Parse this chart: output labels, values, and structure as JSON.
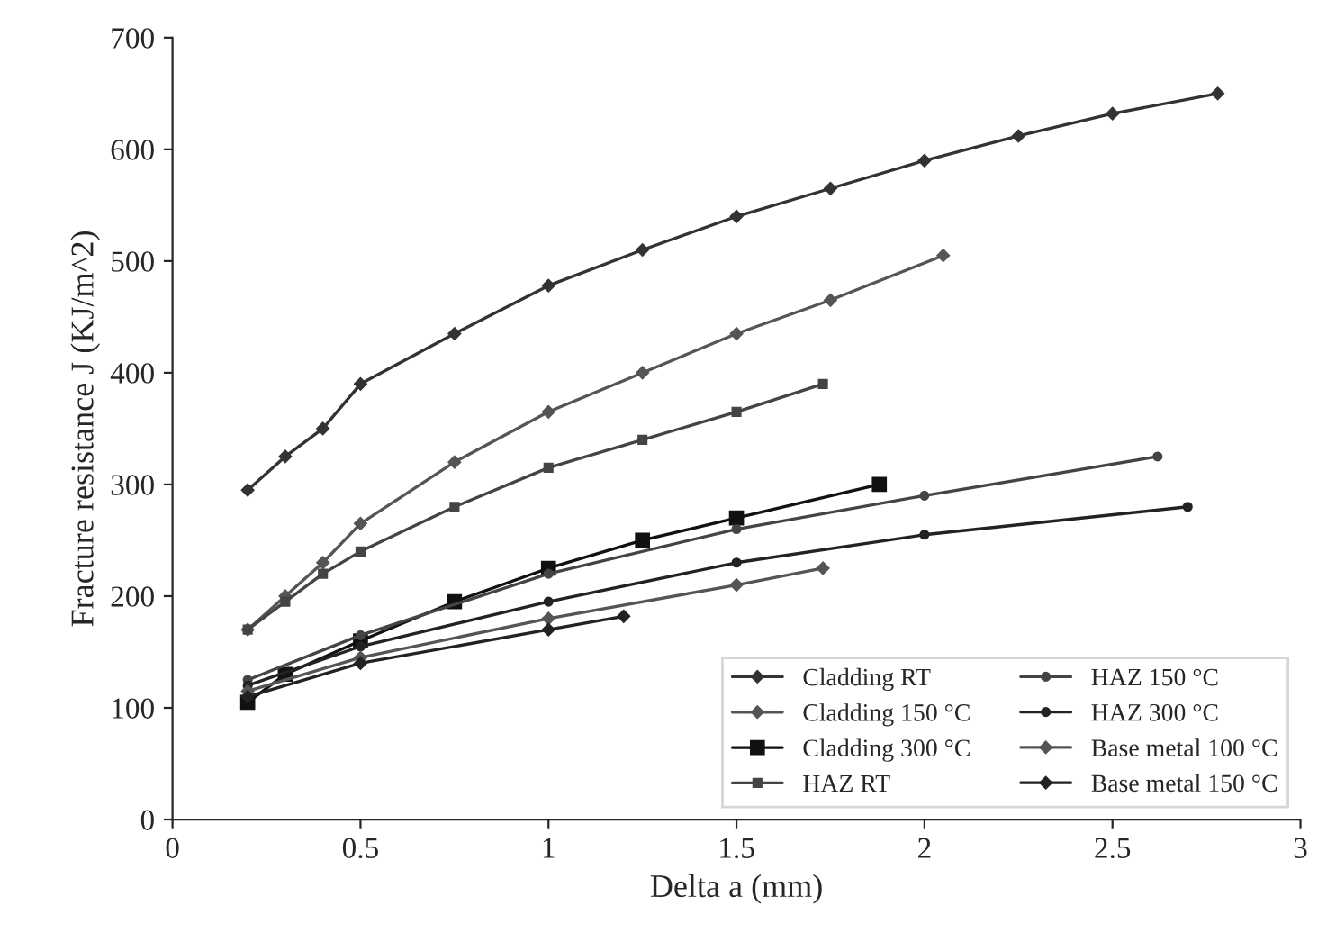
{
  "chart_data": {
    "type": "line",
    "xlabel": "Delta a (mm)",
    "ylabel": "Fracture resistance J (KJ/m^2)",
    "xlim": [
      0,
      3
    ],
    "xticks": [
      0,
      0.5,
      1,
      1.5,
      2,
      2.5,
      3
    ],
    "ylim": [
      0,
      700
    ],
    "yticks": [
      0,
      100,
      200,
      300,
      400,
      500,
      600,
      700
    ],
    "grid": false,
    "legend": "bottom right",
    "line_style": "solid",
    "series": [
      {
        "name": "Cladding RT",
        "color": "#333333",
        "marker": "diamond",
        "x": [
          0.2,
          0.3,
          0.4,
          0.5,
          0.75,
          1.0,
          1.25,
          1.5,
          1.75,
          2.0,
          2.25,
          2.5,
          2.78
        ],
        "values": [
          295,
          325,
          350,
          390,
          435,
          478,
          510,
          540,
          565,
          590,
          612,
          632,
          650
        ]
      },
      {
        "name": "Cladding 150 °C",
        "color": "#555555",
        "marker": "diamond",
        "x": [
          0.2,
          0.3,
          0.4,
          0.5,
          0.75,
          1.0,
          1.25,
          1.5,
          1.75,
          2.05
        ],
        "values": [
          170,
          200,
          230,
          265,
          320,
          365,
          400,
          435,
          465,
          505
        ]
      },
      {
        "name": "Cladding 300 °C",
        "color": "#111111",
        "marker": "square",
        "x": [
          0.2,
          0.3,
          0.5,
          0.75,
          1.0,
          1.25,
          1.5,
          1.88
        ],
        "values": [
          105,
          130,
          160,
          195,
          225,
          250,
          270,
          300
        ]
      },
      {
        "name": "HAZ RT",
        "color": "#444444",
        "marker": "square",
        "x": [
          0.2,
          0.3,
          0.4,
          0.5,
          0.75,
          1.0,
          1.25,
          1.5,
          1.73
        ],
        "values": [
          170,
          195,
          220,
          240,
          280,
          315,
          340,
          365,
          390
        ]
      },
      {
        "name": "HAZ 150 °C",
        "color": "#444444",
        "marker": "circle",
        "x": [
          0.2,
          0.5,
          1.0,
          1.5,
          2.0,
          2.62
        ],
        "values": [
          125,
          165,
          220,
          260,
          290,
          325
        ]
      },
      {
        "name": "HAZ 300 °C",
        "color": "#222222",
        "marker": "circle",
        "x": [
          0.2,
          0.5,
          1.0,
          1.5,
          2.0,
          2.7
        ],
        "values": [
          120,
          155,
          195,
          230,
          255,
          280
        ]
      },
      {
        "name": "Base metal 100 °C",
        "color": "#555555",
        "marker": "diamond",
        "x": [
          0.2,
          0.5,
          1.0,
          1.5,
          1.73
        ],
        "values": [
          115,
          145,
          180,
          210,
          225
        ]
      },
      {
        "name": "Base metal 150 °C",
        "color": "#222222",
        "marker": "diamond",
        "x": [
          0.2,
          0.5,
          1.0,
          1.2
        ],
        "values": [
          110,
          140,
          170,
          182
        ]
      }
    ]
  }
}
